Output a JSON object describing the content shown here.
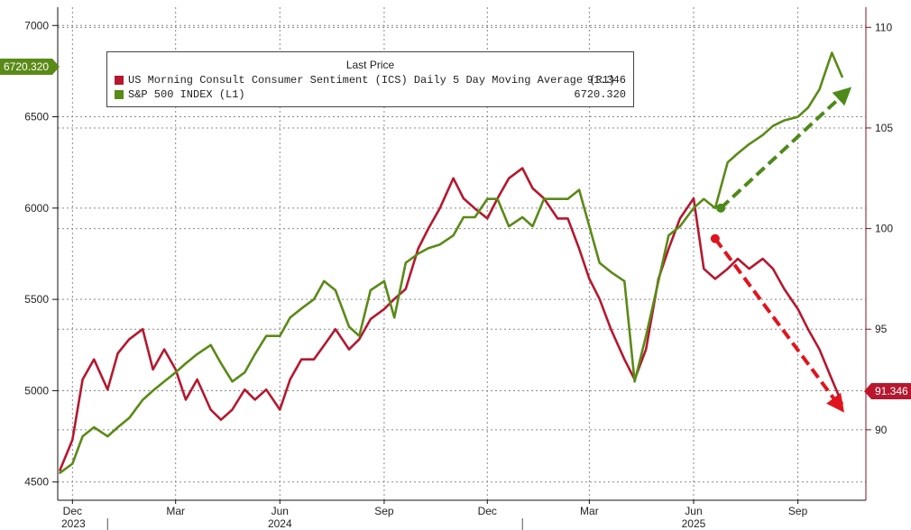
{
  "legend": {
    "title": "Last Price",
    "series": [
      {
        "label": "US Morning Consult Consumer Sentiment (ICS) Daily 5 Day Moving Average  (R1)",
        "value": "91.346",
        "color": "#b5182f"
      },
      {
        "label": "S&P 500 INDEX  (L1)",
        "value": "6720.320",
        "color": "#5a8a17"
      }
    ]
  },
  "tags": {
    "left_value": "6720.320",
    "right_value": "91.346"
  },
  "colors": {
    "sentiment": "#b5182f",
    "spx": "#5a8a17",
    "arrow_green": "#4d8a1a",
    "arrow_red": "#e0141e",
    "grid": "#888888"
  },
  "chart_data": {
    "type": "line",
    "x_ticks": [
      "Dec",
      "Mar",
      "Jun",
      "Sep",
      "Dec",
      "Mar",
      "Jun",
      "Sep"
    ],
    "x_years": [
      "2023",
      "2024",
      "2025"
    ],
    "left_axis": {
      "ylim": [
        4400,
        7100
      ],
      "ticks": [
        "4500",
        "5000",
        "5500",
        "6000",
        "6500",
        "7000"
      ]
    },
    "right_axis": {
      "ylim": [
        86.5,
        111
      ],
      "ticks": [
        "90",
        "95",
        "100",
        "105",
        "110"
      ]
    },
    "grid": true,
    "legend_position": "top-left",
    "series": [
      {
        "name": "US Morning Consult Consumer Sentiment (ICS) Daily 5 Day Moving Average  (R1)",
        "axis": "right",
        "x": [
          "2023-11-20",
          "2023-12-01",
          "2023-12-10",
          "2023-12-20",
          "2024-01-01",
          "2024-01-10",
          "2024-01-20",
          "2024-02-01",
          "2024-02-10",
          "2024-02-20",
          "2024-03-01",
          "2024-03-10",
          "2024-03-20",
          "2024-04-01",
          "2024-04-10",
          "2024-04-20",
          "2024-05-01",
          "2024-05-10",
          "2024-05-20",
          "2024-06-01",
          "2024-06-10",
          "2024-06-20",
          "2024-07-01",
          "2024-07-10",
          "2024-07-20",
          "2024-08-01",
          "2024-08-10",
          "2024-08-20",
          "2024-09-01",
          "2024-09-10",
          "2024-09-20",
          "2024-10-01",
          "2024-10-10",
          "2024-10-20",
          "2024-11-01",
          "2024-11-10",
          "2024-11-20",
          "2024-12-01",
          "2024-12-10",
          "2024-12-20",
          "2025-01-01",
          "2025-01-10",
          "2025-01-20",
          "2025-02-01",
          "2025-02-10",
          "2025-02-20",
          "2025-03-01",
          "2025-03-10",
          "2025-03-20",
          "2025-04-01",
          "2025-04-10",
          "2025-04-20",
          "2025-05-01",
          "2025-05-10",
          "2025-05-20",
          "2025-06-01",
          "2025-06-10",
          "2025-06-20",
          "2025-07-01",
          "2025-07-10",
          "2025-07-20",
          "2025-08-01",
          "2025-08-10",
          "2025-08-20",
          "2025-09-01",
          "2025-09-10",
          "2025-09-20",
          "2025-10-01",
          "2025-10-10"
        ],
        "values": [
          88.0,
          89.5,
          92.5,
          93.5,
          92.0,
          93.8,
          94.5,
          95.0,
          93.0,
          94.0,
          93.0,
          91.5,
          92.5,
          91.0,
          90.5,
          91.0,
          92.0,
          91.5,
          92.0,
          91.0,
          92.5,
          93.5,
          93.5,
          94.2,
          95.0,
          94.0,
          94.5,
          95.5,
          96.0,
          96.5,
          97.0,
          99.0,
          100.0,
          101.0,
          102.5,
          101.5,
          101.0,
          100.5,
          101.5,
          102.5,
          103.0,
          102.0,
          101.5,
          100.5,
          100.5,
          99.0,
          97.5,
          96.5,
          95.0,
          93.5,
          92.5,
          94.0,
          97.5,
          99.0,
          100.5,
          101.5,
          98.0,
          97.5,
          98.0,
          98.5,
          98.0,
          98.5,
          98.0,
          97.0,
          96.0,
          95.0,
          94.0,
          92.5,
          91.3
        ]
      },
      {
        "name": "S&P 500 INDEX  (L1)",
        "axis": "left",
        "x": [
          "2023-11-20",
          "2023-12-01",
          "2023-12-10",
          "2023-12-20",
          "2024-01-01",
          "2024-01-10",
          "2024-01-20",
          "2024-02-01",
          "2024-02-10",
          "2024-02-20",
          "2024-03-01",
          "2024-03-10",
          "2024-03-20",
          "2024-04-01",
          "2024-04-10",
          "2024-04-20",
          "2024-05-01",
          "2024-05-10",
          "2024-05-20",
          "2024-06-01",
          "2024-06-10",
          "2024-06-20",
          "2024-07-01",
          "2024-07-10",
          "2024-07-20",
          "2024-08-01",
          "2024-08-10",
          "2024-08-20",
          "2024-09-01",
          "2024-09-10",
          "2024-09-20",
          "2024-10-01",
          "2024-10-10",
          "2024-10-20",
          "2024-11-01",
          "2024-11-10",
          "2024-11-20",
          "2024-12-01",
          "2024-12-10",
          "2024-12-20",
          "2025-01-01",
          "2025-01-10",
          "2025-01-20",
          "2025-02-01",
          "2025-02-10",
          "2025-02-20",
          "2025-03-01",
          "2025-03-10",
          "2025-03-20",
          "2025-04-01",
          "2025-04-10",
          "2025-04-20",
          "2025-05-01",
          "2025-05-10",
          "2025-05-20",
          "2025-06-01",
          "2025-06-10",
          "2025-06-20",
          "2025-07-01",
          "2025-07-10",
          "2025-07-20",
          "2025-08-01",
          "2025-08-10",
          "2025-08-20",
          "2025-09-01",
          "2025-09-10",
          "2025-09-20",
          "2025-10-01",
          "2025-10-10"
        ],
        "values": [
          4550,
          4600,
          4750,
          4800,
          4750,
          4800,
          4850,
          4950,
          5000,
          5050,
          5100,
          5150,
          5200,
          5250,
          5150,
          5050,
          5100,
          5200,
          5300,
          5300,
          5400,
          5450,
          5500,
          5600,
          5550,
          5350,
          5300,
          5550,
          5600,
          5400,
          5700,
          5750,
          5780,
          5800,
          5850,
          5950,
          5950,
          6050,
          6050,
          5900,
          5950,
          5900,
          6050,
          6050,
          6050,
          6100,
          5900,
          5700,
          5650,
          5600,
          5050,
          5300,
          5600,
          5850,
          5900,
          6000,
          6050,
          6000,
          6250,
          6300,
          6350,
          6400,
          6450,
          6480,
          6500,
          6550,
          6650,
          6850,
          6720
        ]
      }
    ],
    "annotations": [
      {
        "type": "arrow",
        "color": "green",
        "from": [
          "2025-06-25",
          6000
        ],
        "to": [
          "2025-10-16",
          6650
        ]
      },
      {
        "type": "arrow",
        "color": "red",
        "from": [
          "2025-06-20",
          99.5
        ],
        "to": [
          "2025-10-10",
          91.0
        ]
      }
    ]
  }
}
